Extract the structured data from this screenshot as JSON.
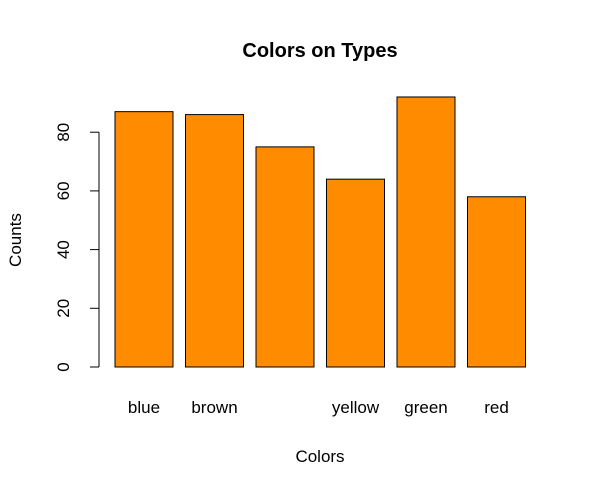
{
  "chart_data": {
    "type": "bar",
    "title": "Colors on Types",
    "xlabel": "Colors",
    "ylabel": "Counts",
    "categories": [
      "blue",
      "brown",
      "",
      "yellow",
      "green",
      "red"
    ],
    "values": [
      87,
      86,
      75,
      64,
      92,
      58
    ],
    "yticks": [
      0,
      20,
      40,
      60,
      80
    ],
    "ylim": [
      0,
      100
    ],
    "bar_color": "#FF8C00",
    "grid": false
  }
}
